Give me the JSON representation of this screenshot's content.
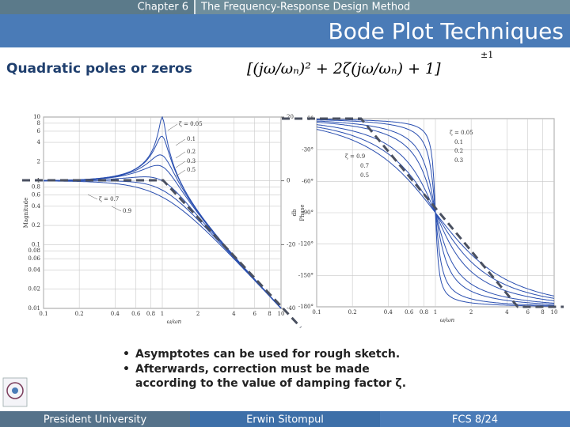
{
  "header": {
    "chapter": "Chapter 6",
    "section": "The Frequency-Response Design Method",
    "title": "Bode Plot Techniques"
  },
  "topic": {
    "heading": "Quadratic poles or zeros",
    "formula": "[(jω/ωₙ)² + 2ζ(jω/ωₙ) + 1]",
    "exponent": "±1"
  },
  "plots": {
    "zeta": [
      0.05,
      0.1,
      0.2,
      0.3,
      0.5,
      0.7,
      0.9
    ],
    "xticks": [
      0.1,
      0.2,
      0.4,
      0.6,
      0.8,
      1,
      2,
      4,
      6,
      8,
      10
    ],
    "xlabel": "ω/ωn",
    "magnitude": {
      "ylabel": "Magnitude",
      "y2label": "db",
      "yticks": [
        0.01,
        0.02,
        0.04,
        0.06,
        0.08,
        0.1,
        0.2,
        0.4,
        0.6,
        0.8,
        1,
        2,
        4,
        6,
        8,
        10
      ],
      "y2ticks": [
        20,
        0,
        -20,
        -40
      ],
      "zeta_labels": [
        "ζ = 0.05",
        "0.1",
        "0.2",
        "0.3",
        "0.5",
        "ζ = 0.7",
        "0.9"
      ]
    },
    "phase": {
      "ylabel": "Phase",
      "yticks": [
        {
          "value": 0,
          "label": "0°"
        },
        {
          "value": -30,
          "label": "-30°"
        },
        {
          "value": -60,
          "label": "-60°"
        },
        {
          "value": -90,
          "label": "-90°"
        },
        {
          "value": -120,
          "label": "-120°"
        },
        {
          "value": -150,
          "label": "-150°"
        },
        {
          "value": -180,
          "label": "-180°"
        }
      ],
      "zeta_labels": [
        "ζ = 0.05",
        "0.1",
        "0.2",
        "0.3",
        "0.5",
        "0.7",
        "ζ = 0.9"
      ]
    }
  },
  "bullets": [
    "Asymptotes can be used for rough sketch.",
    "Afterwards, correction must be made",
    "according to the value of damping factor ζ."
  ],
  "footer": {
    "left": "President University",
    "center": "Erwin Sitompul",
    "right": "FCS 8/24"
  }
}
